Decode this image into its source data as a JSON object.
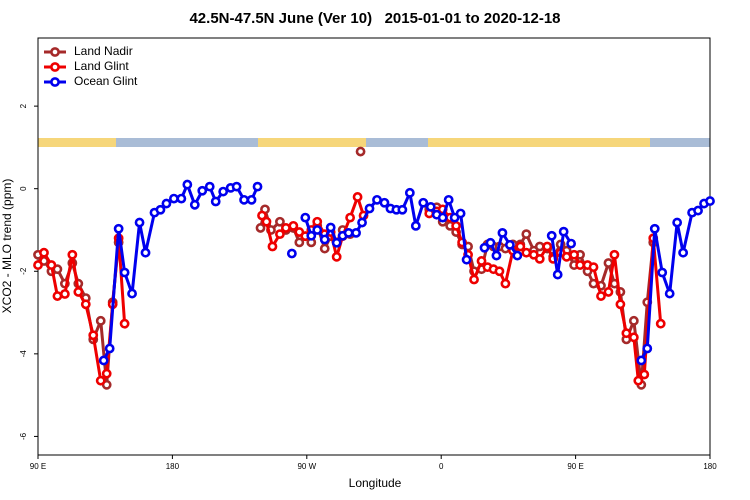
{
  "chart_data": {
    "type": "line",
    "title": "42.5N-47.5N June (Ver 10)   2015-01-01 to 2020-12-18",
    "x_label": "Longitude",
    "y_label": "XCO2 - MLO trend (ppm)",
    "xlim": [
      90,
      540
    ],
    "xticks": [
      {
        "value": 90,
        "label": "90 E"
      },
      180,
      {
        "value": 270,
        "label": "90 W"
      },
      {
        "value": 360,
        "label": "0"
      },
      {
        "value": 450,
        "label": "90 E"
      },
      {
        "value": 540,
        "label": "180"
      }
    ],
    "ylim": [
      -6.45,
      3.65
    ],
    "yticks": [
      -6,
      -4,
      -2,
      0,
      2
    ],
    "legend": "top-left",
    "series": [
      {
        "name": "Land Nadir",
        "color": "#a52a2a",
        "x": [
          90,
          94,
          99,
          103,
          108,
          113,
          117,
          122,
          127,
          132,
          136,
          140,
          144,
          null,
          239,
          242,
          246,
          252,
          256,
          261,
          265,
          269,
          273,
          277,
          282,
          286,
          290,
          294,
          299,
          null,
          306,
          null,
          352,
          357,
          361,
          366,
          370,
          374,
          378,
          382,
          387,
          391,
          395,
          399,
          403,
          408,
          413,
          417,
          422,
          426,
          431,
          435,
          440,
          444,
          449,
          453,
          458,
          462,
          467,
          472,
          476,
          480,
          484,
          489,
          494,
          498,
          502
        ],
        "values": [
          -1.6,
          -1.75,
          -2.0,
          -1.95,
          -2.3,
          -1.8,
          -2.3,
          -2.65,
          -3.65,
          -3.2,
          -4.75,
          -2.75,
          -1.3,
          null,
          -0.95,
          -0.5,
          -1.0,
          -0.8,
          -1.0,
          -0.95,
          -1.3,
          -1.15,
          -1.3,
          -0.9,
          -1.45,
          -1.15,
          -1.3,
          -1.0,
          -1.1,
          null,
          0.9,
          null,
          -0.5,
          -0.45,
          -0.8,
          -0.9,
          -1.05,
          -1.35,
          -1.4,
          -2.0,
          -1.95,
          -1.35,
          -1.4,
          -1.4,
          -1.45,
          -1.35,
          -1.35,
          -1.1,
          -1.5,
          -1.4,
          -1.45,
          -1.65,
          -1.35,
          -1.5,
          -1.85,
          -1.6,
          -2.0,
          -2.3,
          -2.35,
          -1.8,
          -2.3,
          -2.5,
          -3.65,
          -3.2,
          -4.75,
          -2.75,
          -1.3
        ]
      },
      {
        "name": "Land Glint",
        "color": "#ee0000",
        "x": [
          90,
          94,
          99,
          103,
          108,
          113,
          117,
          122,
          127,
          132,
          136,
          140,
          144,
          148,
          null,
          240,
          243,
          247,
          252,
          256,
          261,
          265,
          269,
          273,
          277,
          282,
          286,
          290,
          294,
          299,
          304,
          308,
          null,
          352,
          357,
          361,
          366,
          370,
          374,
          378,
          382,
          387,
          391,
          395,
          399,
          403,
          408,
          413,
          417,
          422,
          426,
          431,
          435,
          440,
          444,
          449,
          453,
          458,
          462,
          467,
          472,
          476,
          480,
          484,
          489,
          492,
          496,
          502,
          507
        ],
        "values": [
          -1.85,
          -1.55,
          -1.85,
          -2.6,
          -2.55,
          -1.6,
          -2.5,
          -2.8,
          -3.55,
          -4.65,
          -4.48,
          -2.8,
          -1.2,
          -3.27,
          null,
          -0.65,
          -0.8,
          -1.4,
          -1.1,
          -0.95,
          -0.9,
          -1.05,
          -1.15,
          -1.0,
          -0.8,
          -1.1,
          -1.05,
          -1.65,
          -1.15,
          -0.7,
          -0.2,
          -0.65,
          null,
          -0.6,
          -0.55,
          -0.5,
          -0.7,
          -0.9,
          -1.3,
          -1.6,
          -2.2,
          -1.75,
          -1.9,
          -1.95,
          -2.0,
          -2.3,
          -1.5,
          -1.4,
          -1.55,
          -1.6,
          -1.7,
          -1.4,
          -1.7,
          -1.55,
          -1.65,
          -1.6,
          -1.85,
          -1.85,
          -1.9,
          -2.6,
          -2.5,
          -1.6,
          -2.8,
          -3.5,
          -3.6,
          -4.65,
          -4.5,
          -1.2,
          -3.27
        ]
      },
      {
        "name": "Ocean Glint",
        "color": "#0000ee",
        "x": [
          134,
          138,
          144,
          148,
          153,
          158,
          162,
          168,
          172,
          176,
          181,
          186,
          190,
          195,
          200,
          205,
          209,
          214,
          219,
          223,
          228,
          233,
          237,
          null,
          260,
          null,
          269,
          273,
          277,
          282,
          286,
          290,
          294,
          298,
          303,
          307,
          312,
          317,
          322,
          326,
          330,
          334,
          339,
          343,
          348,
          353,
          357,
          361,
          365,
          369,
          373,
          377,
          null,
          389,
          393,
          397,
          401,
          406,
          411,
          null,
          434,
          438,
          442,
          447,
          null,
          494,
          498,
          503,
          508,
          513,
          518,
          522,
          528,
          532,
          536,
          540
        ],
        "values": [
          -4.16,
          -3.87,
          -0.97,
          -2.03,
          -2.54,
          -0.82,
          -1.55,
          -0.58,
          -0.51,
          -0.36,
          -0.24,
          -0.24,
          0.1,
          -0.39,
          -0.05,
          0.05,
          -0.31,
          -0.07,
          0.02,
          0.05,
          -0.27,
          -0.27,
          0.05,
          null,
          -1.57,
          null,
          -0.7,
          -1.14,
          -1.0,
          -1.23,
          -0.94,
          -1.31,
          -1.14,
          -1.07,
          -1.07,
          -0.82,
          -0.48,
          -0.27,
          -0.34,
          -0.48,
          -0.51,
          -0.51,
          -0.1,
          -0.9,
          -0.34,
          -0.44,
          -0.63,
          -0.7,
          -0.27,
          -0.7,
          -0.6,
          -1.72,
          null,
          -1.43,
          -1.31,
          -1.62,
          -1.07,
          -1.36,
          -1.62,
          null,
          -1.14,
          -2.08,
          -1.04,
          -1.33,
          null,
          -4.16,
          -3.87,
          -0.97,
          -2.03,
          -2.54,
          -0.82,
          -1.55,
          -0.58,
          -0.53,
          -0.36,
          -0.3
        ]
      }
    ]
  }
}
